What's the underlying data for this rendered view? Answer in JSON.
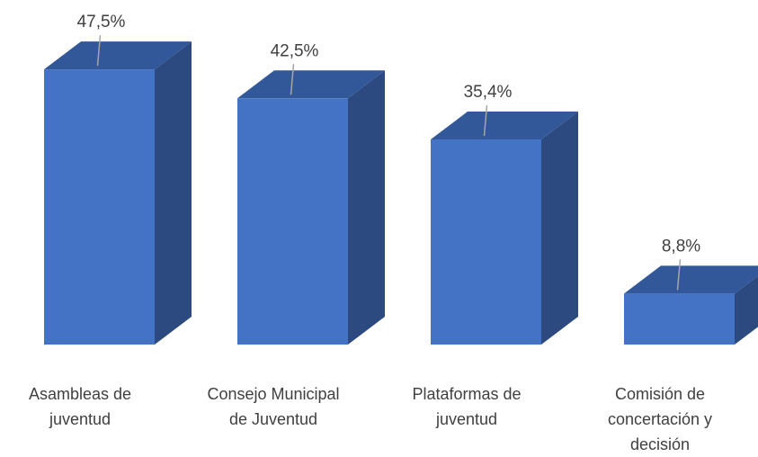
{
  "chart_data": {
    "type": "bar3d",
    "categories": [
      "Asambleas de juventud",
      "Consejo Municipal de Juventud",
      "Plataformas de juventud",
      "Comisión de concertación y decisión"
    ],
    "values": [
      47.5,
      42.5,
      35.4,
      8.8
    ],
    "value_labels": [
      "47,5%",
      "42,5%",
      "35,4%",
      "8,8%"
    ],
    "color": "#4472c4",
    "ylim": [
      0,
      50
    ]
  }
}
